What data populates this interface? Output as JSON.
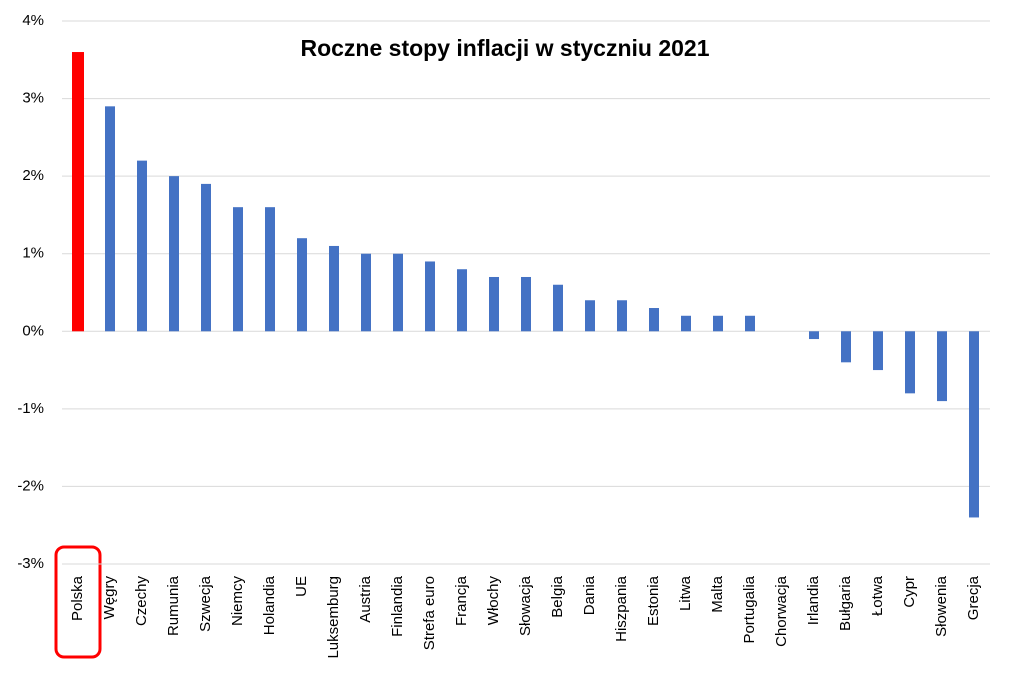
{
  "chart_data": {
    "type": "bar",
    "title": "Roczne stopy inflacji w styczniu 2021",
    "categories": [
      "Polska",
      "Węgry",
      "Czechy",
      "Rumunia",
      "Szwecja",
      "Niemcy",
      "Holandia",
      "UE",
      "Luksemburg",
      "Austria",
      "Finlandia",
      "Strefa euro",
      "Francja",
      "Włochy",
      "Słowacja",
      "Belgia",
      "Dania",
      "Hiszpania",
      "Estonia",
      "Litwa",
      "Malta",
      "Portugalia",
      "Chorwacja",
      "Irlandia",
      "Bułgaria",
      "Łotwa",
      "Cypr",
      "Słowenia",
      "Grecja"
    ],
    "values": [
      3.6,
      2.9,
      2.2,
      2.0,
      1.9,
      1.6,
      1.6,
      1.2,
      1.1,
      1.0,
      1.0,
      0.9,
      0.8,
      0.7,
      0.7,
      0.6,
      0.4,
      0.4,
      0.3,
      0.2,
      0.2,
      0.2,
      0.0,
      -0.1,
      -0.4,
      -0.5,
      -0.8,
      -0.9,
      -2.4
    ],
    "colors": [
      "#ff0000",
      "#4472c4",
      "#4472c4",
      "#4472c4",
      "#4472c4",
      "#4472c4",
      "#4472c4",
      "#4472c4",
      "#4472c4",
      "#4472c4",
      "#4472c4",
      "#4472c4",
      "#4472c4",
      "#4472c4",
      "#4472c4",
      "#4472c4",
      "#4472c4",
      "#4472c4",
      "#4472c4",
      "#4472c4",
      "#4472c4",
      "#4472c4",
      "#4472c4",
      "#4472c4",
      "#4472c4",
      "#4472c4",
      "#4472c4",
      "#4472c4",
      "#4472c4"
    ],
    "ylim": [
      -3,
      4
    ],
    "yticks": [
      {
        "value": -3,
        "label": "-3%"
      },
      {
        "value": -2,
        "label": "-2%"
      },
      {
        "value": -1,
        "label": "-1%"
      },
      {
        "value": 0,
        "label": "0%"
      },
      {
        "value": 1,
        "label": "1%"
      },
      {
        "value": 2,
        "label": "2%"
      },
      {
        "value": 3,
        "label": "3%"
      },
      {
        "value": 4,
        "label": "4%"
      }
    ],
    "grid": true
  }
}
